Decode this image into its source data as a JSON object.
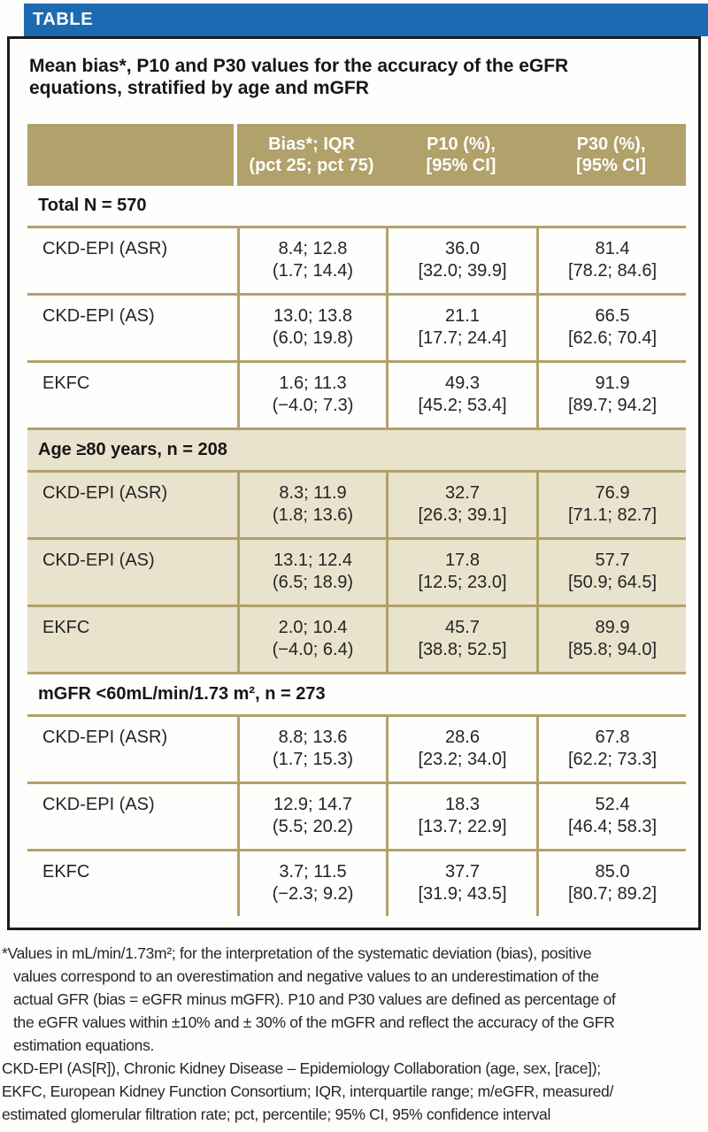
{
  "banner": {
    "label": "TABLE"
  },
  "title": "Mean bias*, P10 and P30 values for the accuracy of the eGFR equations, stratified by age and mGFR",
  "colors": {
    "banner_blue": "#1c6bb2",
    "header_tan": "#b1a16a",
    "shaded_beige": "#e9e3cd",
    "border_black": "#1d1c1a",
    "header_text": "#ffffff"
  },
  "table": {
    "col_headers": [
      {
        "line1": "Bias*; IQR",
        "line2": "(pct 25; pct 75)"
      },
      {
        "line1": "P10 (%),",
        "line2": "[95% CI]"
      },
      {
        "line1": "P30 (%),",
        "line2": "[95% CI]"
      }
    ],
    "sections": [
      {
        "header": "Total N = 570",
        "rows": [
          {
            "label": "CKD-EPI (ASR)",
            "cells": [
              [
                "8.4; 12.8",
                "(1.7; 14.4)"
              ],
              [
                "36.0",
                "[32.0; 39.9]"
              ],
              [
                "81.4",
                "[78.2; 84.6]"
              ]
            ]
          },
          {
            "label": "CKD-EPI (AS)",
            "cells": [
              [
                "13.0; 13.8",
                "(6.0; 19.8)"
              ],
              [
                "21.1",
                "[17.7; 24.4]"
              ],
              [
                "66.5",
                "[62.6; 70.4]"
              ]
            ]
          },
          {
            "label": "EKFC",
            "cells": [
              [
                "1.6; 11.3",
                "(−4.0; 7.3)"
              ],
              [
                "49.3",
                "[45.2; 53.4]"
              ],
              [
                "91.9",
                "[89.7; 94.2]"
              ]
            ]
          }
        ]
      },
      {
        "header": "Age ≥80 years, n = 208",
        "rows": [
          {
            "label": "CKD-EPI (ASR)",
            "cells": [
              [
                "8.3; 11.9",
                "(1.8; 13.6)"
              ],
              [
                "32.7",
                "[26.3; 39.1]"
              ],
              [
                "76.9",
                "[71.1; 82.7]"
              ]
            ]
          },
          {
            "label": "CKD-EPI (AS)",
            "cells": [
              [
                "13.1; 12.4",
                "(6.5; 18.9)"
              ],
              [
                "17.8",
                "[12.5; 23.0]"
              ],
              [
                "57.7",
                "[50.9; 64.5]"
              ]
            ]
          },
          {
            "label": "EKFC",
            "cells": [
              [
                "2.0; 10.4",
                "(−4.0; 6.4)"
              ],
              [
                "45.7",
                "[38.8; 52.5]"
              ],
              [
                "89.9",
                "[85.8; 94.0]"
              ]
            ]
          }
        ]
      },
      {
        "header": "mGFR <60mL/min/1.73 m², n = 273",
        "rows": [
          {
            "label": "CKD-EPI (ASR)",
            "cells": [
              [
                "8.8; 13.6",
                "(1.7; 15.3)"
              ],
              [
                "28.6",
                "[23.2; 34.0]"
              ],
              [
                "67.8",
                "[62.2; 73.3]"
              ]
            ]
          },
          {
            "label": "CKD-EPI (AS)",
            "cells": [
              [
                "12.9; 14.7",
                "(5.5; 20.2)"
              ],
              [
                "18.3",
                "[13.7; 22.9]"
              ],
              [
                "52.4",
                "[46.4; 58.3]"
              ]
            ]
          },
          {
            "label": "EKFC",
            "cells": [
              [
                "3.7; 11.5",
                "(−2.3; 9.2)"
              ],
              [
                "37.7",
                "[31.9; 43.5]"
              ],
              [
                "85.0",
                "[80.7; 89.2]"
              ]
            ]
          }
        ]
      }
    ]
  },
  "footnotes": {
    "starred_lines": [
      "*Values in mL/min/1.73m²; for the interpretation of the systematic deviation (bias), positive",
      "values correspond to an overestimation and negative values to an underestimation of the",
      "actual GFR (bias = eGFR minus mGFR). P10 and P30 values are defined as percentage of",
      "the eGFR values within ±10% and ± 30% of the mGFR and reflect the accuracy of the GFR",
      "estimation equations."
    ],
    "abbrev_lines": [
      "CKD-EPI (AS[R]), Chronic Kidney Disease – Epidemiology Collaboration (age, sex, [race]);",
      "EKFC, European Kidney Function Consortium; IQR, interquartile range; m/eGFR, measured/",
      "estimated glomerular filtration rate; pct, percentile; 95% CI, 95% confidence interval"
    ]
  }
}
